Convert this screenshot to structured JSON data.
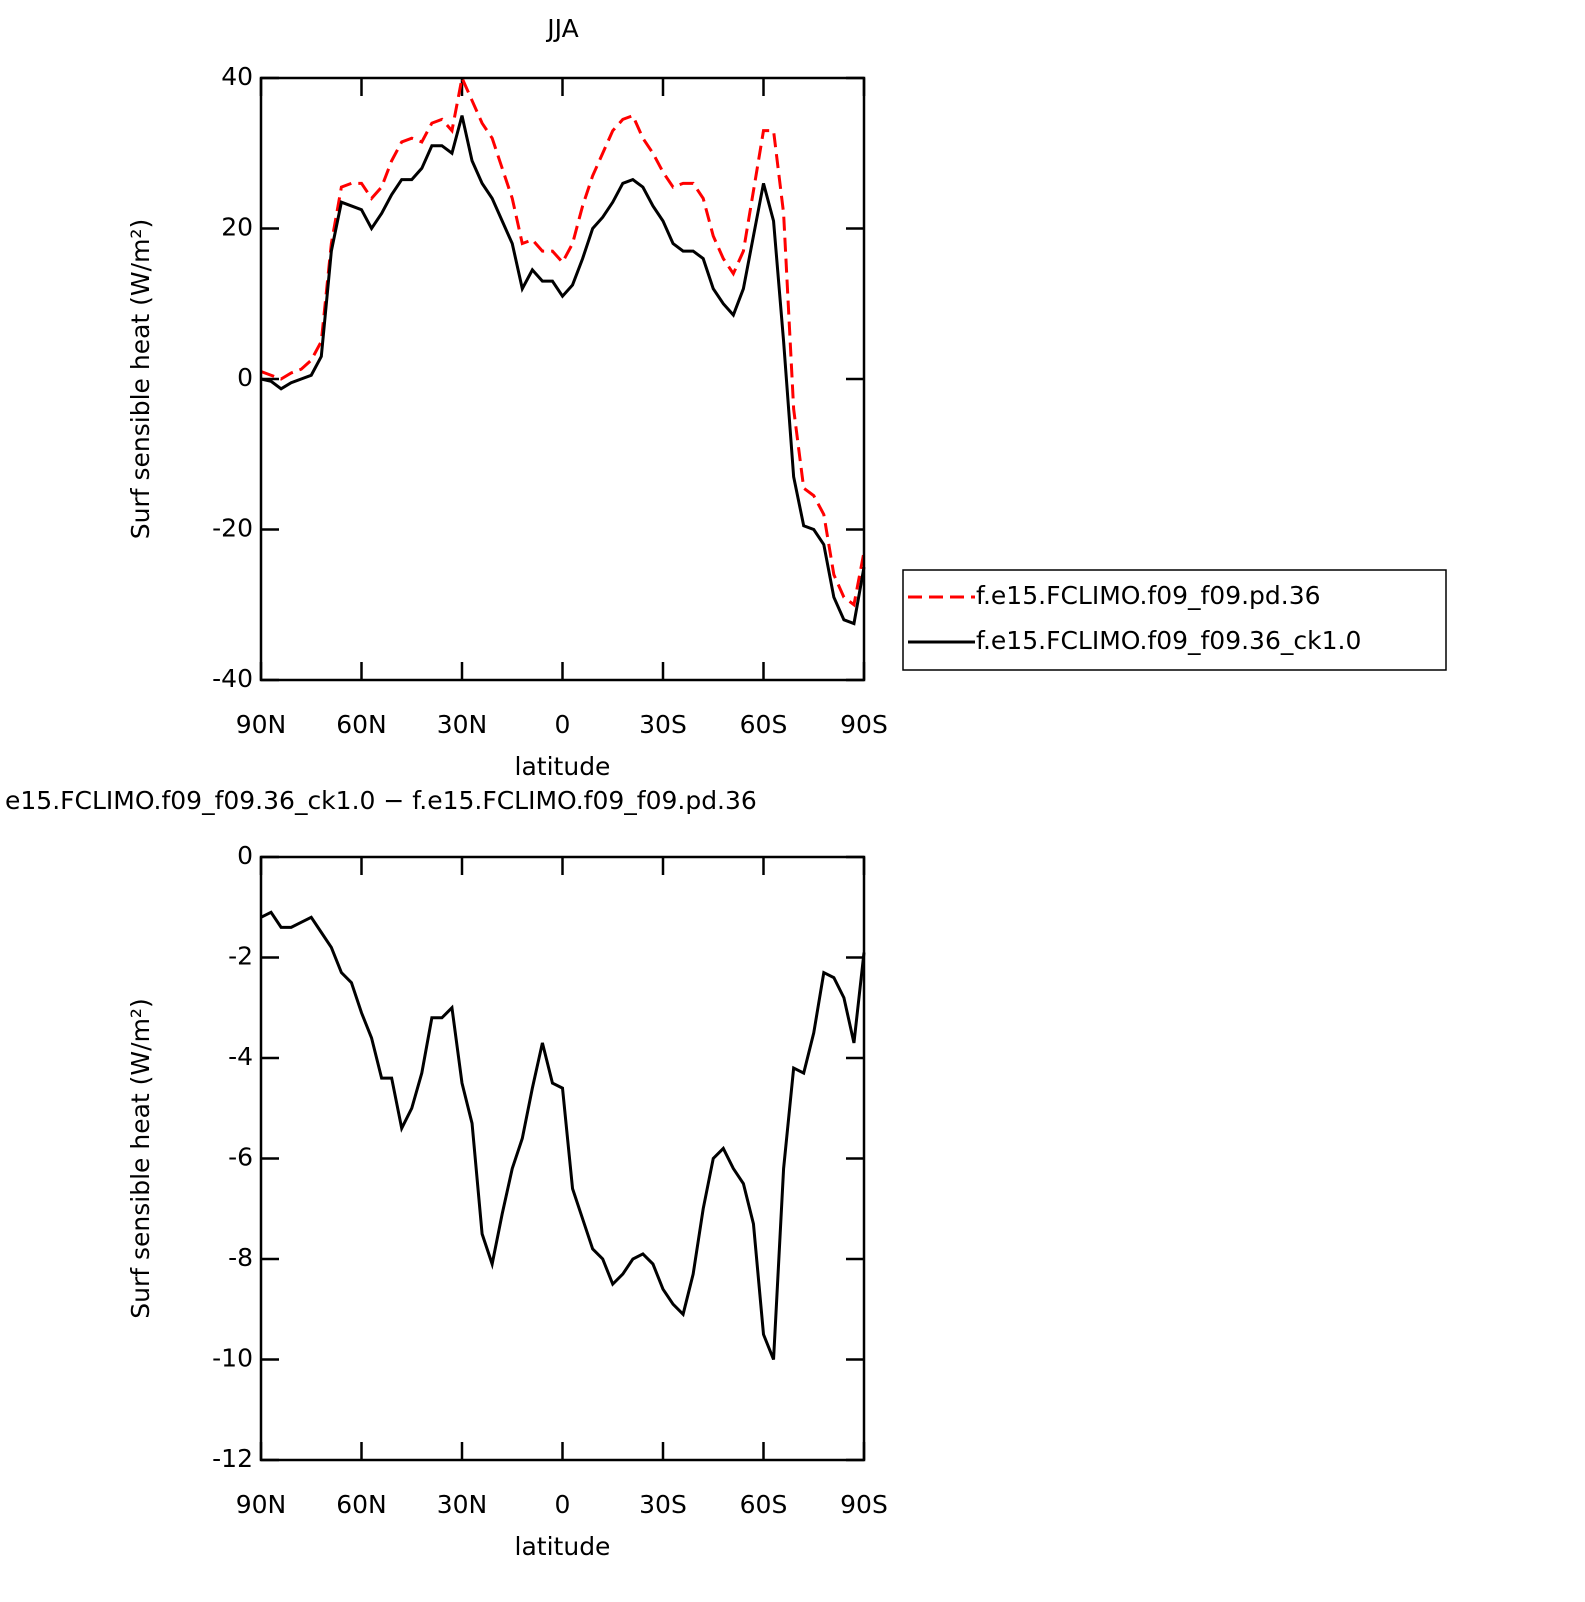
{
  "chart_data": [
    {
      "type": "line",
      "title": "JJA",
      "xlabel": "latitude",
      "ylabel": "Surf sensible heat (W/m²)",
      "x": [
        90,
        87,
        84,
        81,
        78,
        75,
        72,
        69,
        66,
        63,
        60,
        57,
        54,
        51,
        48,
        45,
        42,
        39,
        36,
        33,
        30,
        27,
        24,
        21,
        18,
        15,
        12,
        9,
        6,
        3,
        0,
        -3,
        -6,
        -9,
        -12,
        -15,
        -18,
        -21,
        -24,
        -27,
        -30,
        -33,
        -36,
        -39,
        -42,
        -45,
        -48,
        -51,
        -54,
        -57,
        -60,
        -63,
        -66,
        -69,
        -72,
        -75,
        -78,
        -81,
        -84,
        -87,
        -90
      ],
      "xlim": [
        90,
        -90
      ],
      "xticks": [
        {
          "value": 90,
          "label": "90N"
        },
        {
          "value": 60,
          "label": "60N"
        },
        {
          "value": 30,
          "label": "30N"
        },
        0,
        {
          "value": -30,
          "label": "30S"
        },
        {
          "value": -60,
          "label": "60S"
        },
        {
          "value": -90,
          "label": "90S"
        }
      ],
      "ylim": [
        -40,
        40
      ],
      "yticks": [
        -40,
        -20,
        0,
        20,
        40
      ],
      "legend_position": "right",
      "series": [
        {
          "name": "f.e15.FCLIMO.f09_f09.pd.36",
          "color": "#ff0000",
          "linestyle": "dashed",
          "values": [
            1,
            0.5,
            0,
            0.8,
            1.3,
            2.5,
            5,
            18,
            25.5,
            26,
            26,
            24,
            25.5,
            29,
            31.5,
            32,
            31.5,
            34,
            34.5,
            33,
            40,
            37,
            34,
            32,
            28,
            24,
            18,
            18.5,
            17,
            17,
            15.5,
            18,
            23,
            27,
            30,
            33,
            34.5,
            35,
            32,
            30,
            27.5,
            25.5,
            26,
            26,
            24,
            19,
            16,
            14,
            17,
            25,
            33,
            33,
            22,
            -4,
            -14.5,
            -15.5,
            -18,
            -26,
            -29,
            -30,
            -23
          ]
        },
        {
          "name": "f.e15.FCLIMO.f09_f09.36_ck1.0",
          "color": "#000000",
          "linestyle": "solid",
          "values": [
            0,
            -0.3,
            -1.3,
            -0.5,
            0,
            0.5,
            3,
            17,
            23.5,
            23,
            22.5,
            20,
            22,
            24.5,
            26.5,
            26.5,
            28,
            31,
            31,
            30,
            35,
            29,
            26,
            24,
            21,
            18,
            12,
            14.5,
            13,
            13,
            11,
            12.5,
            16,
            20,
            21.5,
            23.5,
            26,
            26.5,
            25.5,
            23,
            21,
            18,
            17,
            17,
            16,
            12,
            10,
            8.5,
            12,
            19,
            26,
            21,
            5,
            -13,
            -19.5,
            -20,
            -22,
            -29,
            -32,
            -32.5,
            -25
          ]
        }
      ]
    },
    {
      "type": "line",
      "title": "e15.FCLIMO.f09_f09.36_ck1.0 − f.e15.FCLIMO.f09_f09.pd.36",
      "xlabel": "latitude",
      "ylabel": "Surf sensible heat (W/m²)",
      "x": [
        90,
        87,
        84,
        81,
        78,
        75,
        72,
        69,
        66,
        63,
        60,
        57,
        54,
        51,
        48,
        45,
        42,
        39,
        36,
        33,
        30,
        27,
        24,
        21,
        18,
        15,
        12,
        9,
        6,
        3,
        0,
        -3,
        -6,
        -9,
        -12,
        -15,
        -18,
        -21,
        -24,
        -27,
        -30,
        -33,
        -36,
        -39,
        -42,
        -45,
        -48,
        -51,
        -54,
        -57,
        -60,
        -63,
        -66,
        -69,
        -72,
        -75,
        -78,
        -81,
        -84,
        -87,
        -90
      ],
      "xlim": [
        90,
        -90
      ],
      "xticks": [
        {
          "value": 90,
          "label": "90N"
        },
        {
          "value": 60,
          "label": "60N"
        },
        {
          "value": 30,
          "label": "30N"
        },
        0,
        {
          "value": -30,
          "label": "30S"
        },
        {
          "value": -60,
          "label": "60S"
        },
        {
          "value": -90,
          "label": "90S"
        }
      ],
      "ylim": [
        -12,
        0
      ],
      "yticks": [
        -12,
        -10,
        -8,
        -6,
        -4,
        -2,
        0
      ],
      "series": [
        {
          "color": "#000000",
          "linestyle": "solid",
          "values": [
            -1.2,
            -1.1,
            -1.4,
            -1.4,
            -1.3,
            -1.2,
            -1.5,
            -1.8,
            -2.3,
            -2.5,
            -3.1,
            -3.6,
            -4.4,
            -4.4,
            -5.4,
            -5,
            -4.3,
            -3.2,
            -3.2,
            -3,
            -4.5,
            -5.3,
            -7.5,
            -8.1,
            -7.1,
            -6.2,
            -5.6,
            -4.6,
            -3.7,
            -4.5,
            -4.6,
            -6.6,
            -7.2,
            -7.8,
            -8,
            -8.5,
            -8.3,
            -8,
            -7.9,
            -8.1,
            -8.6,
            -8.9,
            -9.1,
            -8.3,
            -7,
            -6,
            -5.8,
            -6.2,
            -6.5,
            -7.3,
            -9.5,
            -10,
            -6.2,
            -4.2,
            -4.3,
            -3.5,
            -2.3,
            -2.4,
            -2.8,
            -3.7,
            -1.9
          ]
        }
      ]
    }
  ]
}
